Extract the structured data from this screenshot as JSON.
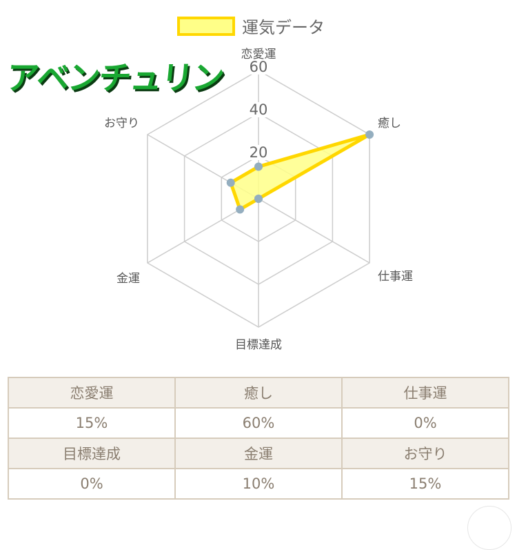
{
  "title": "アベンチュリン",
  "chart_data": {
    "type": "radar",
    "categories": [
      "恋愛運",
      "癒し",
      "仕事運",
      "目標達成",
      "金運",
      "お守り"
    ],
    "series": [
      {
        "name": "運気データ",
        "values": [
          15,
          60,
          0,
          0,
          10,
          15
        ]
      }
    ],
    "ticks": [
      "20",
      "40",
      "60"
    ],
    "rlim": [
      0,
      60
    ],
    "legend": "top",
    "grid": true,
    "colors": {
      "fill": "#ffff88",
      "stroke": "#ffd700",
      "point": "#94aebf",
      "grid": "#cccccc"
    }
  },
  "table": {
    "rows": [
      {
        "type": "header",
        "cells": [
          "恋愛運",
          "癒し",
          "仕事運"
        ]
      },
      {
        "type": "value",
        "cells": [
          "15%",
          "60%",
          "0%"
        ]
      },
      {
        "type": "header",
        "cells": [
          "目標達成",
          "金運",
          "お守り"
        ]
      },
      {
        "type": "value",
        "cells": [
          "0%",
          "10%",
          "15%"
        ]
      }
    ]
  }
}
